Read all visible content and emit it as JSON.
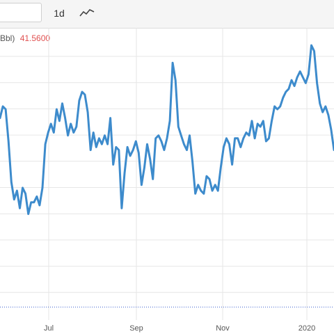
{
  "toolbar": {
    "date_value": "",
    "interval_label": "1d",
    "chart_type_icon": "line-chart-icon"
  },
  "legend": {
    "unit_text": "Bbl)",
    "last_value": "41.5600",
    "last_value_color": "#e05050"
  },
  "colors": {
    "line": "#3d8bcc",
    "grid": "#e6e6e6",
    "baseline": "#3a5fcd"
  },
  "chart_data": {
    "type": "line",
    "title": "",
    "xlabel": "",
    "ylabel": "",
    "x_tick_labels": [
      "Jul",
      "Sep",
      "Nov",
      "2020"
    ],
    "x_range": [
      "2019-05-07",
      "2020-01-16"
    ],
    "y_range": [
      0,
      10
    ],
    "y_ticks_shown": false,
    "grid": true,
    "dotted_reference_value": 0.4,
    "series": [
      {
        "values": [
          [
            0,
            6.9
          ],
          [
            1,
            7.3
          ],
          [
            2,
            7.2
          ],
          [
            3,
            6.1
          ],
          [
            4,
            4.7
          ],
          [
            5,
            4.1
          ],
          [
            6,
            4.4
          ],
          [
            7,
            3.8
          ],
          [
            8,
            4.5
          ],
          [
            9,
            4.3
          ],
          [
            10,
            3.6
          ],
          [
            11,
            4.0
          ],
          [
            12,
            4.0
          ],
          [
            13,
            4.2
          ],
          [
            14,
            3.9
          ],
          [
            15,
            4.5
          ],
          [
            16,
            6.0
          ],
          [
            17,
            6.4
          ],
          [
            18,
            6.7
          ],
          [
            19,
            6.4
          ],
          [
            20,
            7.2
          ],
          [
            21,
            6.8
          ],
          [
            22,
            7.4
          ],
          [
            23,
            6.9
          ],
          [
            24,
            6.3
          ],
          [
            25,
            6.7
          ],
          [
            26,
            6.4
          ],
          [
            27,
            6.6
          ],
          [
            28,
            7.5
          ],
          [
            29,
            7.8
          ],
          [
            30,
            7.7
          ],
          [
            31,
            7.1
          ],
          [
            32,
            5.8
          ],
          [
            33,
            6.4
          ],
          [
            34,
            5.9
          ],
          [
            35,
            6.2
          ],
          [
            36,
            6.0
          ],
          [
            37,
            6.3
          ],
          [
            38,
            6.0
          ],
          [
            39,
            6.9
          ],
          [
            40,
            5.3
          ],
          [
            41,
            5.9
          ],
          [
            42,
            5.8
          ],
          [
            43,
            3.8
          ],
          [
            44,
            5.0
          ],
          [
            45,
            5.9
          ],
          [
            46,
            5.6
          ],
          [
            47,
            5.8
          ],
          [
            48,
            6.1
          ],
          [
            49,
            5.7
          ],
          [
            50,
            4.6
          ],
          [
            51,
            5.2
          ],
          [
            52,
            6.0
          ],
          [
            53,
            5.5
          ],
          [
            54,
            4.8
          ],
          [
            55,
            6.2
          ],
          [
            56,
            6.3
          ],
          [
            57,
            6.1
          ],
          [
            58,
            5.8
          ],
          [
            59,
            6.2
          ],
          [
            60,
            6.8
          ],
          [
            61,
            8.8
          ],
          [
            62,
            8.2
          ],
          [
            63,
            6.6
          ],
          [
            64,
            6.3
          ],
          [
            65,
            6.0
          ],
          [
            66,
            5.8
          ],
          [
            67,
            6.3
          ],
          [
            68,
            5.4
          ],
          [
            69,
            4.3
          ],
          [
            70,
            4.6
          ],
          [
            71,
            4.4
          ],
          [
            72,
            4.3
          ],
          [
            73,
            4.9
          ],
          [
            74,
            4.8
          ],
          [
            75,
            4.4
          ],
          [
            76,
            4.6
          ],
          [
            77,
            4.4
          ],
          [
            78,
            5.2
          ],
          [
            79,
            5.9
          ],
          [
            80,
            6.2
          ],
          [
            81,
            6.0
          ],
          [
            82,
            5.3
          ],
          [
            83,
            6.2
          ],
          [
            84,
            6.2
          ],
          [
            85,
            5.9
          ],
          [
            86,
            6.2
          ],
          [
            87,
            6.4
          ],
          [
            88,
            6.3
          ],
          [
            89,
            6.8
          ],
          [
            90,
            6.2
          ],
          [
            91,
            6.7
          ],
          [
            92,
            6.6
          ],
          [
            93,
            6.8
          ],
          [
            94,
            6.1
          ],
          [
            95,
            6.2
          ],
          [
            96,
            6.8
          ],
          [
            97,
            7.3
          ],
          [
            98,
            7.2
          ],
          [
            99,
            7.3
          ],
          [
            100,
            7.6
          ],
          [
            101,
            7.8
          ],
          [
            102,
            7.9
          ],
          [
            103,
            8.2
          ],
          [
            104,
            8.0
          ],
          [
            105,
            8.3
          ],
          [
            106,
            8.5
          ],
          [
            107,
            8.3
          ],
          [
            108,
            8.1
          ],
          [
            109,
            8.4
          ],
          [
            110,
            9.4
          ],
          [
            111,
            9.2
          ],
          [
            112,
            8.1
          ],
          [
            113,
            7.4
          ],
          [
            114,
            7.1
          ],
          [
            115,
            7.3
          ],
          [
            116,
            7.0
          ],
          [
            117,
            6.5
          ],
          [
            118,
            5.8
          ]
        ]
      }
    ]
  }
}
